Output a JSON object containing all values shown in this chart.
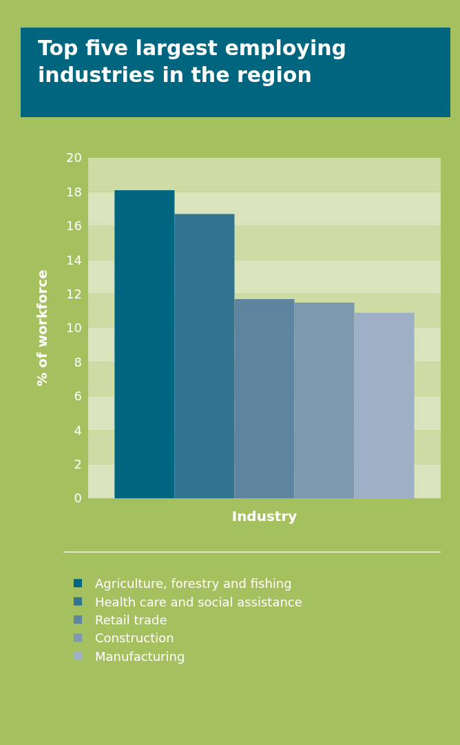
{
  "chart_data": {
    "type": "bar",
    "title": "Top five largest employing\nindustries in the region",
    "xlabel": "Industry",
    "ylabel": "% of workforce",
    "categories": [
      null
    ],
    "series": [
      {
        "name": "Agriculture, forestry and fishing",
        "color": "#00667f",
        "values": [
          18.1
        ]
      },
      {
        "name": "Health care and social assistance",
        "color": "#317390",
        "values": [
          16.7
        ]
      },
      {
        "name": "Retail trade",
        "color": "#5e84a0",
        "values": [
          11.7
        ]
      },
      {
        "name": "Construction",
        "color": "#7e98b0",
        "values": [
          11.5
        ]
      },
      {
        "name": "Manufacturing",
        "color": "#9eb0c6",
        "values": [
          10.9
        ]
      }
    ],
    "bands": [
      {
        "axis": "y",
        "from": 0,
        "to": 2,
        "color": "#d9e4bd"
      },
      {
        "axis": "y",
        "from": 4,
        "to": 6,
        "color": "#d9e4bd"
      },
      {
        "axis": "y",
        "from": 8,
        "to": 10,
        "color": "#d9e4bd"
      },
      {
        "axis": "y",
        "from": 12,
        "to": 14,
        "color": "#d9e4bd"
      },
      {
        "axis": "y",
        "from": 16,
        "to": 18,
        "color": "#d9e4bd"
      },
      {
        "axis": "y",
        "from": 2,
        "to": 4,
        "color": "#cddba4"
      },
      {
        "axis": "y",
        "from": 6,
        "to": 8,
        "color": "#cddba4"
      },
      {
        "axis": "y",
        "from": 10,
        "to": 12,
        "color": "#cddba4"
      },
      {
        "axis": "y",
        "from": 14,
        "to": 16,
        "color": "#cddba4"
      },
      {
        "axis": "y",
        "from": 18,
        "to": 20,
        "color": "#cddba4"
      }
    ],
    "ylim": [
      0,
      20
    ],
    "yticks": [
      0,
      2,
      4,
      6,
      8,
      10,
      12,
      14,
      16,
      18,
      20
    ],
    "legend": "bottom",
    "tick_labels": "y"
  }
}
